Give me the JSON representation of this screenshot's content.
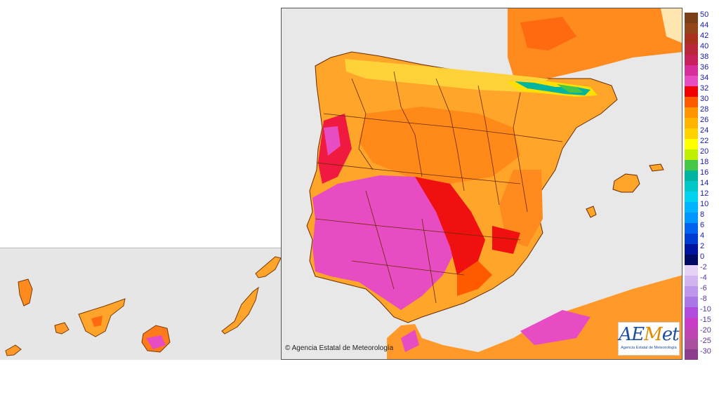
{
  "map": {
    "copyright": "© Agencia Estatal de Meteorología",
    "logo_text": "AEMet",
    "logo_subtitle": "Agencia Estatal de Meteorología"
  },
  "legend": {
    "positive": [
      {
        "label": "50",
        "color": "#7b3f18"
      },
      {
        "label": "44",
        "color": "#93451a"
      },
      {
        "label": "42",
        "color": "#a8301e"
      },
      {
        "label": "40",
        "color": "#b8283a"
      },
      {
        "label": "38",
        "color": "#c8205a"
      },
      {
        "label": "36",
        "color": "#d82e9c"
      },
      {
        "label": "34",
        "color": "#e84cc2"
      },
      {
        "label": "32",
        "color": "#f00000"
      },
      {
        "label": "30",
        "color": "#ff5a00"
      },
      {
        "label": "28",
        "color": "#ff9600"
      },
      {
        "label": "26",
        "color": "#ffb400"
      },
      {
        "label": "24",
        "color": "#ffd200"
      },
      {
        "label": "22",
        "color": "#ffff00"
      },
      {
        "label": "20",
        "color": "#bff000"
      },
      {
        "label": "18",
        "color": "#46c846"
      },
      {
        "label": "16",
        "color": "#00b4a0"
      },
      {
        "label": "14",
        "color": "#00c8c8"
      },
      {
        "label": "12",
        "color": "#00d2f0"
      },
      {
        "label": "10",
        "color": "#00b4ff"
      },
      {
        "label": "8",
        "color": "#0096ff"
      },
      {
        "label": "6",
        "color": "#0064f0"
      },
      {
        "label": "4",
        "color": "#003cd2"
      },
      {
        "label": "2",
        "color": "#0014a0"
      },
      {
        "label": "0",
        "color": "#000a64"
      }
    ],
    "negative": [
      {
        "label": "-2",
        "color": "#e6d2f5"
      },
      {
        "label": "-4",
        "color": "#d2b4f0"
      },
      {
        "label": "-6",
        "color": "#be96eb"
      },
      {
        "label": "-8",
        "color": "#aa78e6"
      },
      {
        "label": "-10",
        "color": "#b04be0"
      },
      {
        "label": "-15",
        "color": "#c83cc8"
      },
      {
        "label": "-20",
        "color": "#be46b4"
      },
      {
        "label": "-25",
        "color": "#aa50a0"
      },
      {
        "label": "-30",
        "color": "#8c3c8c"
      }
    ]
  }
}
